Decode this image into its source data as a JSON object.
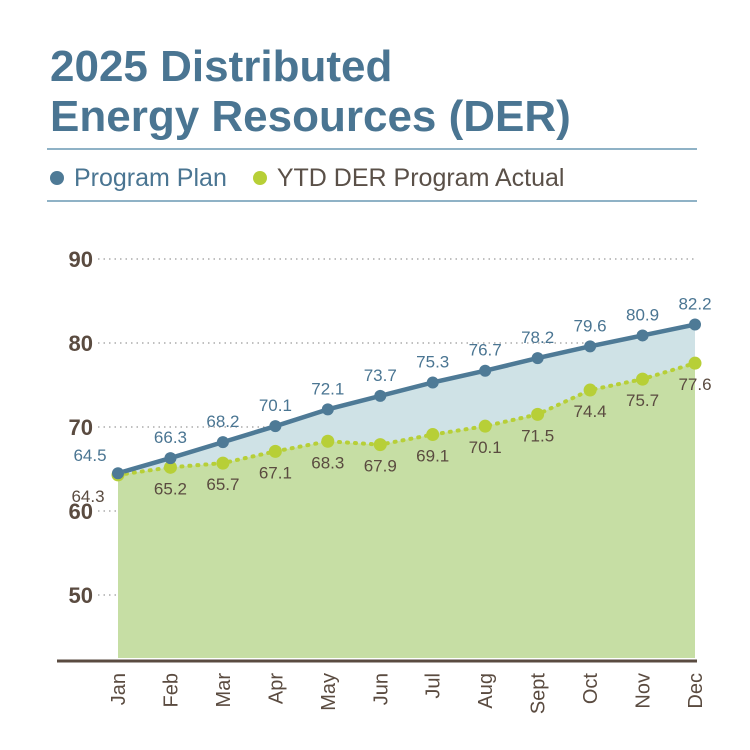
{
  "title_line1": "2025 Distributed",
  "title_line2": "Energy Resources (DER)",
  "colors": {
    "plan": "#4e7a96",
    "actual": "#b7cf37",
    "plan_fill": "#cfe2e6",
    "actual_fill": "#c6dea4",
    "axis": "#5a4b40",
    "title": "#4a7592"
  },
  "chart_data": {
    "type": "line",
    "categories": [
      "Jan",
      "Feb",
      "Mar",
      "Apr",
      "May",
      "Jun",
      "Jul",
      "Aug",
      "Sept",
      "Oct",
      "Nov",
      "Dec"
    ],
    "series": [
      {
        "name": "Program Plan",
        "values": [
          64.5,
          66.3,
          68.2,
          70.1,
          72.1,
          73.7,
          75.3,
          76.7,
          78.2,
          79.6,
          80.9,
          82.2
        ]
      },
      {
        "name": "YTD DER Program Actual",
        "values": [
          64.3,
          65.2,
          65.7,
          67.1,
          68.3,
          67.9,
          69.1,
          70.1,
          71.5,
          74.4,
          75.7,
          77.6
        ]
      }
    ],
    "yticks": [
      50,
      60,
      70,
      80,
      90
    ],
    "ylim": [
      42.5,
      90
    ],
    "grid": true,
    "legend": "top-left"
  }
}
